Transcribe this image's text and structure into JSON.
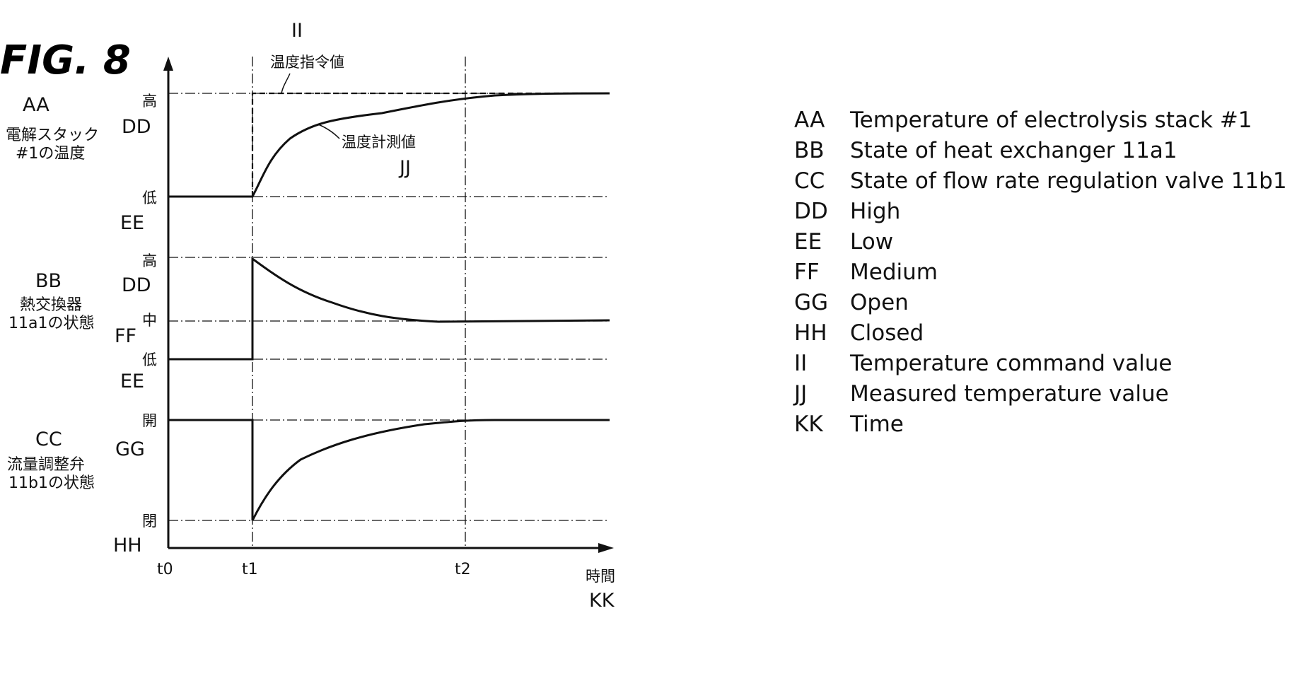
{
  "figure_title": "FIG. 8",
  "panels": {
    "top": {
      "code": "AA",
      "jp_line1": "電解スタック",
      "jp_line2": "#1の温度",
      "high_jp": "高",
      "high_code": "DD",
      "low_jp": "低",
      "low_code": "EE"
    },
    "middle": {
      "code": "BB",
      "jp_line1": "熱交換器",
      "jp_line2": "11a1の状態",
      "high_jp": "高",
      "high_code": "DD",
      "mid_jp": "中",
      "mid_code": "FF",
      "low_jp": "低",
      "low_code": "EE"
    },
    "bottom": {
      "code": "CC",
      "jp_line1": "流量調整弁",
      "jp_line2": "11b1の状態",
      "open_jp": "開",
      "open_code": "GG",
      "closed_jp": "閉",
      "closed_code": "HH"
    }
  },
  "annotations": {
    "command": {
      "code": "II",
      "jp": "温度指令値"
    },
    "measured": {
      "code": "JJ",
      "jp": "温度計測値"
    }
  },
  "time_axis": {
    "ticks": [
      "t0",
      "t1",
      "t2"
    ],
    "label_jp": "時間",
    "label_code": "KK"
  },
  "legend": [
    {
      "key": "AA",
      "text": "Temperature of electrolysis stack #1"
    },
    {
      "key": "BB",
      "text": "State of heat exchanger 11a1"
    },
    {
      "key": "CC",
      "text": "State of flow rate regulation valve 11b1"
    },
    {
      "key": "DD",
      "text": "High"
    },
    {
      "key": "EE",
      "text": "Low"
    },
    {
      "key": "FF",
      "text": "Medium"
    },
    {
      "key": "GG",
      "text": "Open"
    },
    {
      "key": "HH",
      "text": "Closed"
    },
    {
      "key": "II",
      "text": "Temperature command value"
    },
    {
      "key": "JJ",
      "text": "Measured temperature value"
    },
    {
      "key": "KK",
      "text": "Time"
    }
  ]
}
